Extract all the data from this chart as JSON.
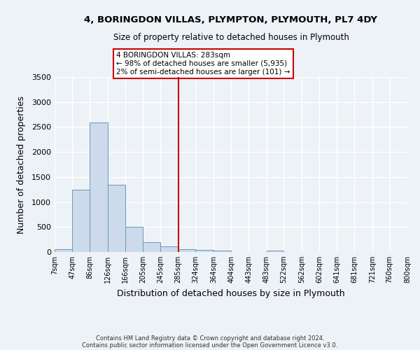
{
  "title_line1": "4, BORINGDON VILLAS, PLYMPTON, PLYMOUTH, PL7 4DY",
  "title_line2": "Size of property relative to detached houses in Plymouth",
  "xlabel": "Distribution of detached houses by size in Plymouth",
  "ylabel": "Number of detached properties",
  "bin_labels": [
    "7sqm",
    "47sqm",
    "86sqm",
    "126sqm",
    "166sqm",
    "205sqm",
    "245sqm",
    "285sqm",
    "324sqm",
    "364sqm",
    "404sqm",
    "443sqm",
    "483sqm",
    "522sqm",
    "562sqm",
    "602sqm",
    "641sqm",
    "681sqm",
    "721sqm",
    "760sqm",
    "800sqm"
  ],
  "bin_edges": [
    7,
    47,
    86,
    126,
    166,
    205,
    245,
    285,
    324,
    364,
    404,
    443,
    483,
    522,
    562,
    602,
    641,
    681,
    721,
    760,
    800
  ],
  "bar_heights": [
    50,
    1240,
    2590,
    1350,
    500,
    195,
    115,
    55,
    40,
    25,
    0,
    0,
    30,
    0,
    0,
    0,
    0,
    0,
    0,
    0
  ],
  "bar_color": "#cddaeb",
  "bar_edge_color": "#6699bb",
  "vline_x": 285,
  "vline_color": "#cc0000",
  "annotation_title": "4 BORINGDON VILLAS: 283sqm",
  "annotation_line2": "← 98% of detached houses are smaller (5,935)",
  "annotation_line3": "2% of semi-detached houses are larger (101) →",
  "annotation_box_edge_color": "#cc0000",
  "ylim": [
    0,
    3500
  ],
  "yticks": [
    0,
    500,
    1000,
    1500,
    2000,
    2500,
    3000,
    3500
  ],
  "background_color": "#edf2f7",
  "grid_color": "#ffffff",
  "footer_line1": "Contains HM Land Registry data © Crown copyright and database right 2024.",
  "footer_line2": "Contains public sector information licensed under the Open Government Licence v3.0."
}
